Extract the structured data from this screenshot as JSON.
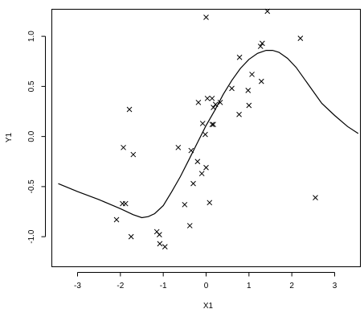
{
  "chart_data": {
    "type": "scatter",
    "xlabel": "X1",
    "ylabel": "Y1",
    "xlim": [
      -3.6,
      3.6
    ],
    "ylim": [
      -1.3,
      1.27
    ],
    "x_ticks": [
      -3,
      -2,
      -1,
      0,
      1,
      2,
      3
    ],
    "y_ticks": [
      -1.0,
      -0.5,
      0.0,
      0.5,
      1.0
    ],
    "x_tick_labels": [
      "-3",
      "-2",
      "-1",
      "0",
      "1",
      "2",
      "3"
    ],
    "y_tick_labels": [
      "-1.0",
      "-0.5",
      "0.0",
      "0.5",
      "1.0"
    ],
    "points": {
      "marker": "x",
      "x": [
        1.43,
        0.0,
        1.31,
        2.2,
        0.78,
        1.07,
        1.27,
        0.6,
        0.98,
        1.29,
        1.0,
        -0.18,
        0.03,
        0.14,
        0.17,
        0.22,
        0.33,
        0.77,
        -0.08,
        -1.79,
        -1.7,
        -1.93,
        -0.65,
        -0.35,
        -0.1,
        0.0,
        0.17,
        0.14,
        -0.02,
        0.08,
        -1.95,
        -1.88,
        -2.09,
        -0.2,
        -0.5,
        -0.3,
        -0.38,
        -1.15,
        -1.75,
        -1.09,
        -1.08,
        -0.96,
        2.55
      ],
      "y": [
        1.25,
        1.19,
        0.93,
        0.98,
        0.79,
        0.62,
        0.9,
        0.48,
        0.46,
        0.55,
        0.31,
        0.34,
        0.38,
        0.38,
        0.29,
        0.32,
        0.34,
        0.22,
        0.13,
        0.27,
        -0.18,
        -0.11,
        -0.11,
        -0.14,
        -0.37,
        -0.31,
        0.12,
        0.12,
        0.02,
        -0.66,
        -0.67,
        -0.67,
        -0.83,
        -0.25,
        -0.68,
        -0.47,
        -0.89,
        -0.95,
        -1.0,
        -0.98,
        -1.07,
        -1.1,
        -0.61
      ]
    },
    "curve": {
      "x": [
        -3.45,
        -3.0,
        -2.5,
        -2.0,
        -1.7,
        -1.5,
        -1.35,
        -1.2,
        -1.0,
        -0.8,
        -0.6,
        -0.4,
        -0.2,
        0.0,
        0.2,
        0.4,
        0.6,
        0.8,
        1.0,
        1.2,
        1.4,
        1.55,
        1.7,
        1.9,
        2.1,
        2.4,
        2.7,
        3.0,
        3.3,
        3.55
      ],
      "y": [
        -0.47,
        -0.55,
        -0.63,
        -0.72,
        -0.78,
        -0.81,
        -0.8,
        -0.77,
        -0.69,
        -0.55,
        -0.4,
        -0.23,
        -0.06,
        0.11,
        0.26,
        0.42,
        0.56,
        0.68,
        0.77,
        0.83,
        0.86,
        0.86,
        0.84,
        0.78,
        0.69,
        0.51,
        0.33,
        0.21,
        0.1,
        0.03
      ]
    },
    "grid": false,
    "legend": "none"
  }
}
